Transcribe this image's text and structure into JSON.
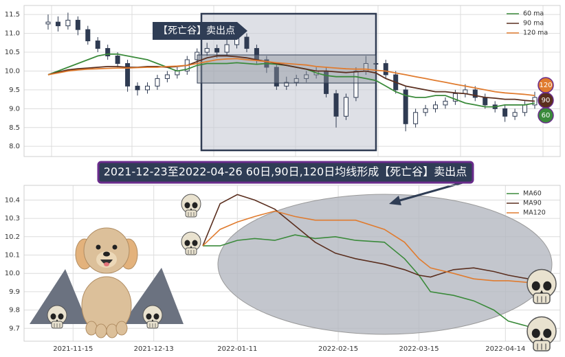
{
  "chart_data": [
    {
      "type": "candlestick",
      "open": [
        11.25,
        11.3,
        11.2,
        11.35,
        11.1,
        10.8,
        10.6,
        10.4,
        10.2,
        9.6,
        9.5,
        9.6,
        9.8,
        9.9,
        10.0,
        10.3,
        10.5,
        10.6,
        10.5,
        10.7,
        10.9,
        10.6,
        10.3,
        10.1,
        9.6,
        9.7,
        9.8,
        9.9,
        10.0,
        9.4,
        8.8,
        9.3,
        10.0,
        10.2,
        10.2,
        9.9,
        9.5,
        8.6,
        8.9,
        9.0,
        9.1,
        9.2,
        9.4,
        9.5,
        9.3,
        9.1,
        9.0,
        8.8,
        8.9,
        9.1
      ],
      "high": [
        11.5,
        11.45,
        11.55,
        11.45,
        11.2,
        10.9,
        10.7,
        10.5,
        10.3,
        9.7,
        9.7,
        9.9,
        10.0,
        10.1,
        10.4,
        10.6,
        10.75,
        10.7,
        10.85,
        11.05,
        11.0,
        10.7,
        10.4,
        10.2,
        9.85,
        9.9,
        10.0,
        10.1,
        10.1,
        9.5,
        9.4,
        10.1,
        10.4,
        10.45,
        10.3,
        10.0,
        9.6,
        9.0,
        9.1,
        9.2,
        9.3,
        9.5,
        9.65,
        9.6,
        9.4,
        9.2,
        9.1,
        9.0,
        9.2,
        9.45
      ],
      "low": [
        11.1,
        11.05,
        11.1,
        10.95,
        10.7,
        10.5,
        10.3,
        10.1,
        9.45,
        9.35,
        9.4,
        9.5,
        9.7,
        9.8,
        9.9,
        10.2,
        10.4,
        10.35,
        10.4,
        10.6,
        10.5,
        10.2,
        9.95,
        9.5,
        9.5,
        9.6,
        9.7,
        9.8,
        9.3,
        8.5,
        8.7,
        9.2,
        9.9,
        10.05,
        9.8,
        9.4,
        8.4,
        8.5,
        8.8,
        8.9,
        9.0,
        9.1,
        9.3,
        9.2,
        9.0,
        8.9,
        8.65,
        8.7,
        8.8,
        9.0
      ],
      "close": [
        11.3,
        11.2,
        11.35,
        11.1,
        10.8,
        10.6,
        10.4,
        10.2,
        9.6,
        9.5,
        9.6,
        9.8,
        9.9,
        10.0,
        10.3,
        10.5,
        10.6,
        10.5,
        10.7,
        10.9,
        10.6,
        10.3,
        10.1,
        9.6,
        9.7,
        9.8,
        9.9,
        10.0,
        9.4,
        8.8,
        9.3,
        10.0,
        10.2,
        10.2,
        9.9,
        9.5,
        8.6,
        8.9,
        9.0,
        9.1,
        9.2,
        9.4,
        9.5,
        9.3,
        9.1,
        9.0,
        8.8,
        8.9,
        9.1,
        9.3
      ],
      "candle_color": "#2f3b52",
      "series": [
        {
          "name": "60 ma",
          "color": "#3a8a3a",
          "values": [
            9.9,
            10.0,
            10.1,
            10.2,
            10.3,
            10.4,
            10.45,
            10.45,
            10.4,
            10.35,
            10.3,
            10.2,
            10.1,
            10.0,
            10.05,
            10.15,
            10.2,
            10.2,
            10.2,
            10.22,
            10.2,
            10.18,
            10.2,
            10.18,
            10.15,
            10.1,
            10.05,
            9.95,
            9.88,
            9.85,
            9.85,
            9.85,
            9.8,
            9.75,
            9.6,
            9.45,
            9.35,
            9.3,
            9.3,
            9.35,
            9.35,
            9.25,
            9.15,
            9.1,
            9.05,
            9.05,
            9.1,
            9.1,
            9.1,
            9.15
          ]
        },
        {
          "name": "90 ma",
          "color": "#5a2e1e",
          "values": [
            9.9,
            9.97,
            10.03,
            10.06,
            10.08,
            10.1,
            10.12,
            10.12,
            10.1,
            10.1,
            10.12,
            10.12,
            10.1,
            10.12,
            10.15,
            10.25,
            10.35,
            10.4,
            10.4,
            10.38,
            10.35,
            10.3,
            10.25,
            10.2,
            10.15,
            10.1,
            10.05,
            10.0,
            10.0,
            9.98,
            9.96,
            9.98,
            10.0,
            9.95,
            9.8,
            9.7,
            9.6,
            9.55,
            9.5,
            9.45,
            9.45,
            9.42,
            9.4,
            9.35,
            9.3,
            9.28,
            9.25,
            9.25,
            9.22,
            9.2
          ]
        },
        {
          "name": "120 ma",
          "color": "#e07b2e",
          "values": [
            9.9,
            9.95,
            10.0,
            10.03,
            10.05,
            10.06,
            10.07,
            10.08,
            10.08,
            10.09,
            10.1,
            10.1,
            10.12,
            10.13,
            10.15,
            10.2,
            10.25,
            10.3,
            10.32,
            10.33,
            10.3,
            10.28,
            10.25,
            10.22,
            10.2,
            10.18,
            10.16,
            10.12,
            10.1,
            10.08,
            10.06,
            10.05,
            10.05,
            10.02,
            10.0,
            9.95,
            9.9,
            9.85,
            9.8,
            9.75,
            9.7,
            9.65,
            9.6,
            9.55,
            9.5,
            9.45,
            9.42,
            9.4,
            9.38,
            9.35
          ]
        }
      ],
      "ylim": [
        7.73,
        11.74
      ],
      "yticks": [
        {
          "value": 8,
          "label": "8.0"
        },
        {
          "value": 8.5,
          "label": "8.5"
        },
        {
          "value": 9,
          "label": "9.0"
        },
        {
          "value": 9.5,
          "label": "9.5"
        },
        {
          "value": 10,
          "label": "10.0"
        },
        {
          "value": 10.5,
          "label": "10.5"
        },
        {
          "value": 11,
          "label": "11.0"
        },
        {
          "value": 11.5,
          "label": "11.5"
        }
      ],
      "grid": true,
      "legend": "upper right",
      "annotation": "【死亡谷】卖出点",
      "end_labels": [
        "120",
        "90",
        "60"
      ]
    },
    {
      "type": "line",
      "title": "2021-12-23至2022-04-26 60日,90日,120日均线形成【死亡谷】卖出点",
      "x": [
        "2021-12-30",
        "2022-01-05",
        "2022-01-11",
        "2022-01-17",
        "2022-01-24",
        "2022-01-31",
        "2022-02-07",
        "2022-02-14",
        "2022-02-21",
        "2022-03-03",
        "2022-03-10",
        "2022-03-15",
        "2022-03-19",
        "2022-03-27",
        "2022-04-03",
        "2022-04-10",
        "2022-04-15",
        "2022-04-22"
      ],
      "series": [
        {
          "name": "MA60",
          "color": "#3a8a3a",
          "values": [
            10.15,
            10.15,
            10.18,
            10.19,
            10.18,
            10.21,
            10.19,
            10.2,
            10.18,
            10.17,
            10.08,
            9.99,
            9.9,
            9.88,
            9.85,
            9.8,
            9.74,
            9.71
          ]
        },
        {
          "name": "MA90",
          "color": "#5a2e1e",
          "values": [
            10.15,
            10.38,
            10.43,
            10.4,
            10.35,
            10.26,
            10.17,
            10.11,
            10.08,
            10.05,
            10.02,
            9.99,
            9.98,
            10.02,
            10.03,
            10.01,
            9.99,
            9.97
          ]
        },
        {
          "name": "MA120",
          "color": "#e07b2e",
          "values": [
            10.15,
            10.24,
            10.28,
            10.31,
            10.34,
            10.31,
            10.29,
            10.29,
            10.29,
            10.24,
            10.17,
            10.08,
            10.03,
            10.0,
            9.97,
            9.96,
            9.96,
            9.95
          ]
        }
      ],
      "xlim": [
        "2021-10-29",
        "2022-05-03"
      ],
      "xticks": [
        "2021-11-15",
        "2021-12-13",
        "2022-01-11",
        "2022-02-15",
        "2022-03-15",
        "2022-04-14"
      ],
      "ylim": [
        9.63,
        10.48
      ],
      "yticks": [
        9.7,
        9.8,
        9.9,
        {
          "value": 10,
          "label": "10.0"
        },
        10.1,
        10.2,
        10.3,
        10.4
      ],
      "grid": true,
      "legend": "upper right"
    }
  ]
}
